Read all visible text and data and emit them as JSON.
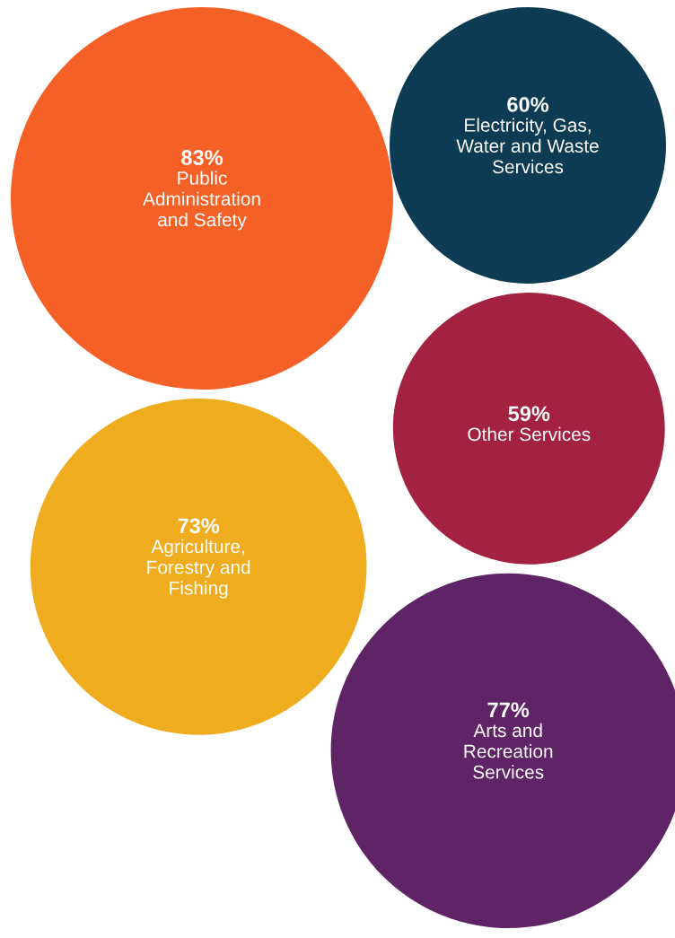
{
  "chart_data": {
    "type": "other",
    "categories": [
      "Public\nAdministration\nand Safety",
      "Electricity, Gas,\nWater and Waste\nServices",
      "Other Services",
      "Agriculture,\nForestry and\nFishing",
      "Arts and\nRecreation\nServices"
    ],
    "values": [
      83,
      60,
      59,
      73,
      77
    ],
    "value_labels": [
      "83%",
      "60%",
      "59%",
      "73%",
      "77%"
    ],
    "colors": [
      "#f56026",
      "#0c3b53",
      "#a32240",
      "#efac1f",
      "#5f2465"
    ]
  }
}
